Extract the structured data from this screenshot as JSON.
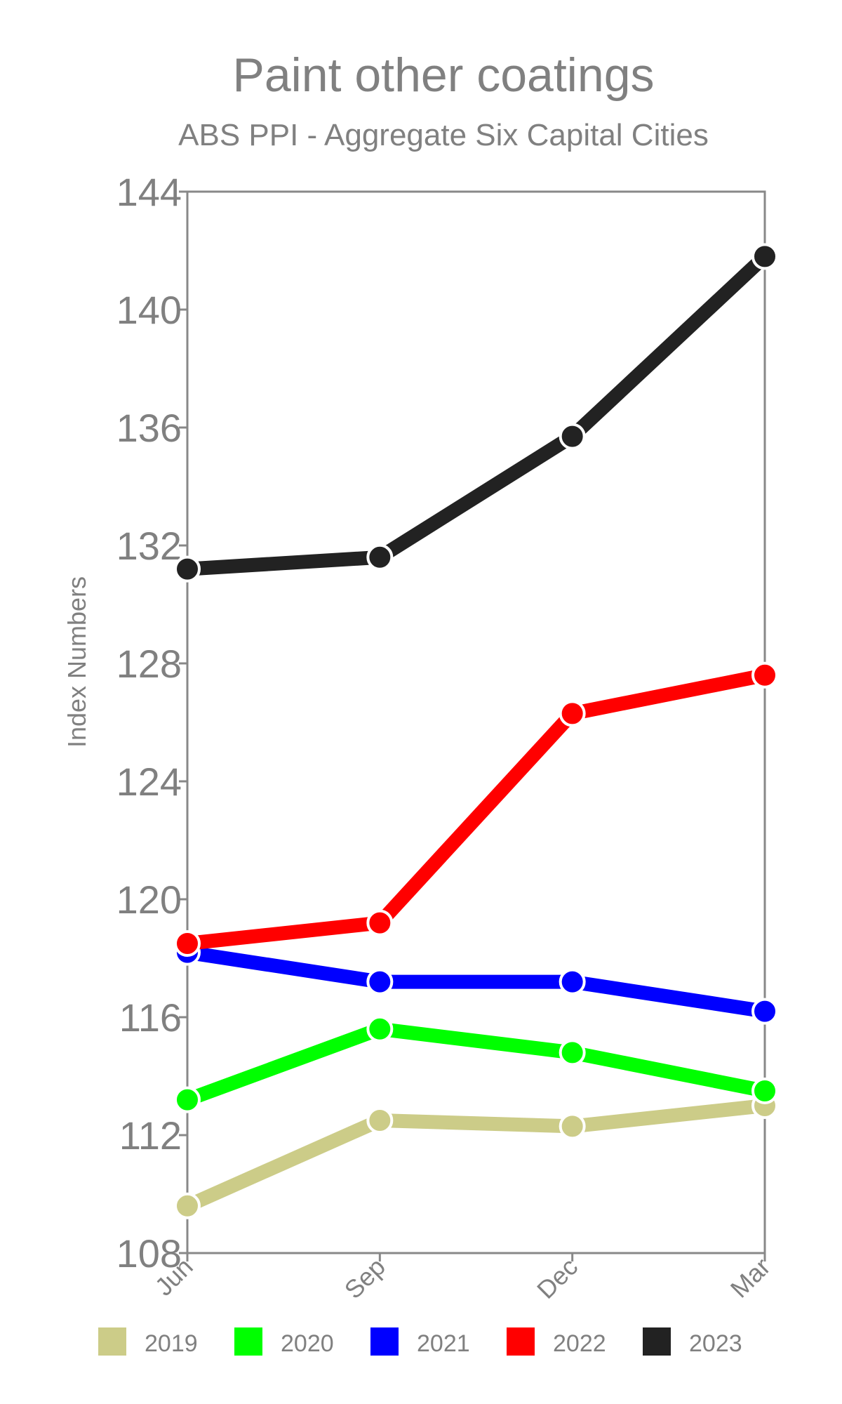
{
  "chart_data": {
    "type": "line",
    "title": "Paint other coatings",
    "subtitle": "ABS PPI - Aggregate Six Capital Cities",
    "xlabel": "",
    "ylabel": "Index Numbers",
    "categories": [
      "Jun",
      "Sep",
      "Dec",
      "Mar"
    ],
    "ylim": [
      108,
      144
    ],
    "yticks": [
      108,
      112,
      116,
      120,
      124,
      128,
      132,
      136,
      140,
      144
    ],
    "grid": false,
    "legend_position": "bottom",
    "series": [
      {
        "name": "2019",
        "color": "#cccc88",
        "values": [
          109.6,
          112.5,
          112.3,
          113.0
        ]
      },
      {
        "name": "2020",
        "color": "#00ff00",
        "values": [
          113.2,
          115.6,
          114.8,
          113.5
        ]
      },
      {
        "name": "2021",
        "color": "#0000ff",
        "values": [
          118.2,
          117.2,
          117.2,
          116.2
        ]
      },
      {
        "name": "2022",
        "color": "#ff0000",
        "values": [
          118.5,
          119.2,
          126.3,
          127.6
        ]
      },
      {
        "name": "2023",
        "color": "#222222",
        "values": [
          131.2,
          131.6,
          135.7,
          141.8
        ]
      }
    ]
  }
}
